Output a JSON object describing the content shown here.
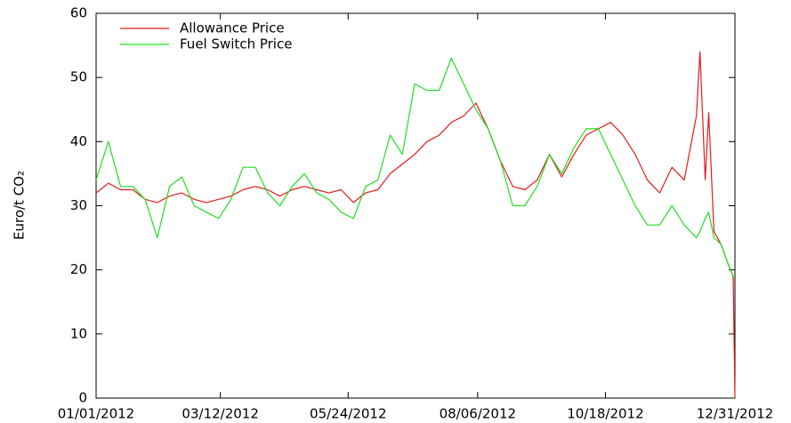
{
  "chart_data": {
    "type": "line",
    "ylabel": "Euro/t CO₂",
    "x": [
      "01/01/2012",
      "01/08/2012",
      "01/15/2012",
      "01/22/2012",
      "01/29/2012",
      "02/05/2012",
      "02/12/2012",
      "02/19/2012",
      "02/26/2012",
      "03/04/2012",
      "03/11/2012",
      "03/18/2012",
      "03/25/2012",
      "04/01/2012",
      "04/08/2012",
      "04/15/2012",
      "04/22/2012",
      "04/29/2012",
      "05/06/2012",
      "05/13/2012",
      "05/20/2012",
      "05/27/2012",
      "06/03/2012",
      "06/10/2012",
      "06/17/2012",
      "06/24/2012",
      "07/01/2012",
      "07/08/2012",
      "07/15/2012",
      "07/22/2012",
      "07/29/2012",
      "08/05/2012",
      "08/12/2012",
      "08/19/2012",
      "08/26/2012",
      "09/02/2012",
      "09/09/2012",
      "09/16/2012",
      "09/23/2012",
      "09/30/2012",
      "10/07/2012",
      "10/14/2012",
      "10/21/2012",
      "10/28/2012",
      "11/04/2012",
      "11/11/2012",
      "11/18/2012",
      "11/25/2012",
      "12/02/2012",
      "12/09/2012",
      "12/11/2012",
      "12/14/2012",
      "12/16/2012",
      "12/19/2012",
      "12/23/2012",
      "12/27/2012",
      "12/30/2012",
      "12/31/2012"
    ],
    "series": [
      {
        "name": "Allowance Price",
        "color": "#e41a1c",
        "values": [
          32,
          33.5,
          32.5,
          32.5,
          31,
          30.5,
          31.5,
          32,
          31,
          30.5,
          31,
          31.5,
          32.5,
          33,
          32.5,
          31.5,
          32.5,
          33,
          32.5,
          32,
          32.5,
          30.5,
          32,
          32.5,
          35,
          36.5,
          38,
          40,
          41,
          43,
          44,
          46,
          42,
          37,
          33,
          32.5,
          34,
          38,
          34.5,
          38,
          41,
          42,
          43,
          41,
          38,
          34,
          32,
          36,
          34,
          44,
          54,
          34,
          44.5,
          26,
          24,
          21,
          19,
          0
        ]
      },
      {
        "name": "Fuel Switch Price",
        "color": "#22dd22",
        "values": [
          34,
          40,
          33,
          33,
          31,
          25,
          33,
          34.5,
          30,
          29,
          28,
          31,
          36,
          36,
          32,
          30,
          33,
          35,
          32,
          31,
          29,
          28,
          33,
          34,
          41,
          38,
          49,
          48,
          48,
          53,
          49,
          45,
          42,
          37,
          30,
          30,
          33,
          38,
          35,
          39,
          42,
          42,
          38,
          34,
          30,
          27,
          27,
          30,
          27,
          25,
          26,
          28,
          29,
          25,
          24,
          21,
          19,
          19
        ]
      }
    ],
    "xlim": [
      "01/01/2012",
      "12/31/2012"
    ],
    "xticks": [
      "01/01/2012",
      "03/12/2012",
      "05/24/2012",
      "08/06/2012",
      "10/18/2012",
      "12/31/2012"
    ],
    "ylim": [
      0,
      60
    ],
    "yticks": [
      0,
      10,
      20,
      30,
      40,
      50,
      60
    ],
    "legend": "top-left"
  }
}
